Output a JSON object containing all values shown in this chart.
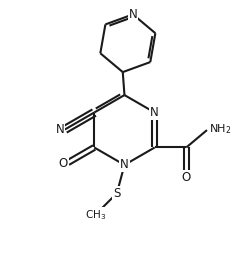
{
  "bg_color": "#ffffff",
  "line_color": "#1a1a1a",
  "lw": 1.5,
  "xlim": [
    0,
    10
  ],
  "ylim": [
    0,
    11
  ],
  "figsize": [
    2.38,
    2.67
  ],
  "dpi": 100
}
